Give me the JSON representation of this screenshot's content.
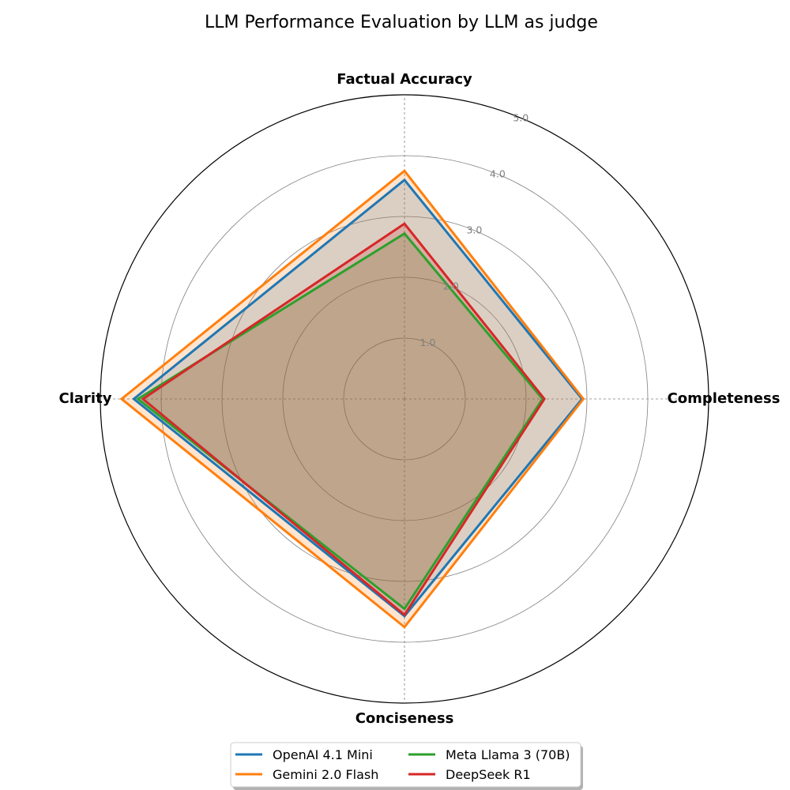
{
  "chart_data": {
    "type": "radar",
    "title": "LLM Performance Evaluation by LLM as judge",
    "axes": [
      "Factual Accuracy",
      "Completeness",
      "Conciseness",
      "Clarity"
    ],
    "rlim": [
      0,
      5
    ],
    "rticks": [
      1,
      2,
      3,
      4,
      5
    ],
    "rtick_labels": [
      "1.0",
      "2.0",
      "3.0",
      "4.0",
      "5.0"
    ],
    "grid": true,
    "legend_position": "bottom-center",
    "series": [
      {
        "name": "OpenAI 4.1 Mini",
        "color": "#1f77b4",
        "values": [
          3.6,
          2.92,
          3.57,
          4.45
        ]
      },
      {
        "name": "Gemini 2.0 Flash",
        "color": "#ff7f0e",
        "values": [
          3.75,
          2.94,
          3.75,
          4.65
        ]
      },
      {
        "name": "Meta Llama 3 (70B)",
        "color": "#2ca02c",
        "values": [
          2.72,
          2.27,
          3.45,
          4.38
        ]
      },
      {
        "name": "DeepSeek R1",
        "color": "#d62728",
        "values": [
          2.88,
          2.3,
          3.55,
          4.3
        ]
      }
    ]
  }
}
